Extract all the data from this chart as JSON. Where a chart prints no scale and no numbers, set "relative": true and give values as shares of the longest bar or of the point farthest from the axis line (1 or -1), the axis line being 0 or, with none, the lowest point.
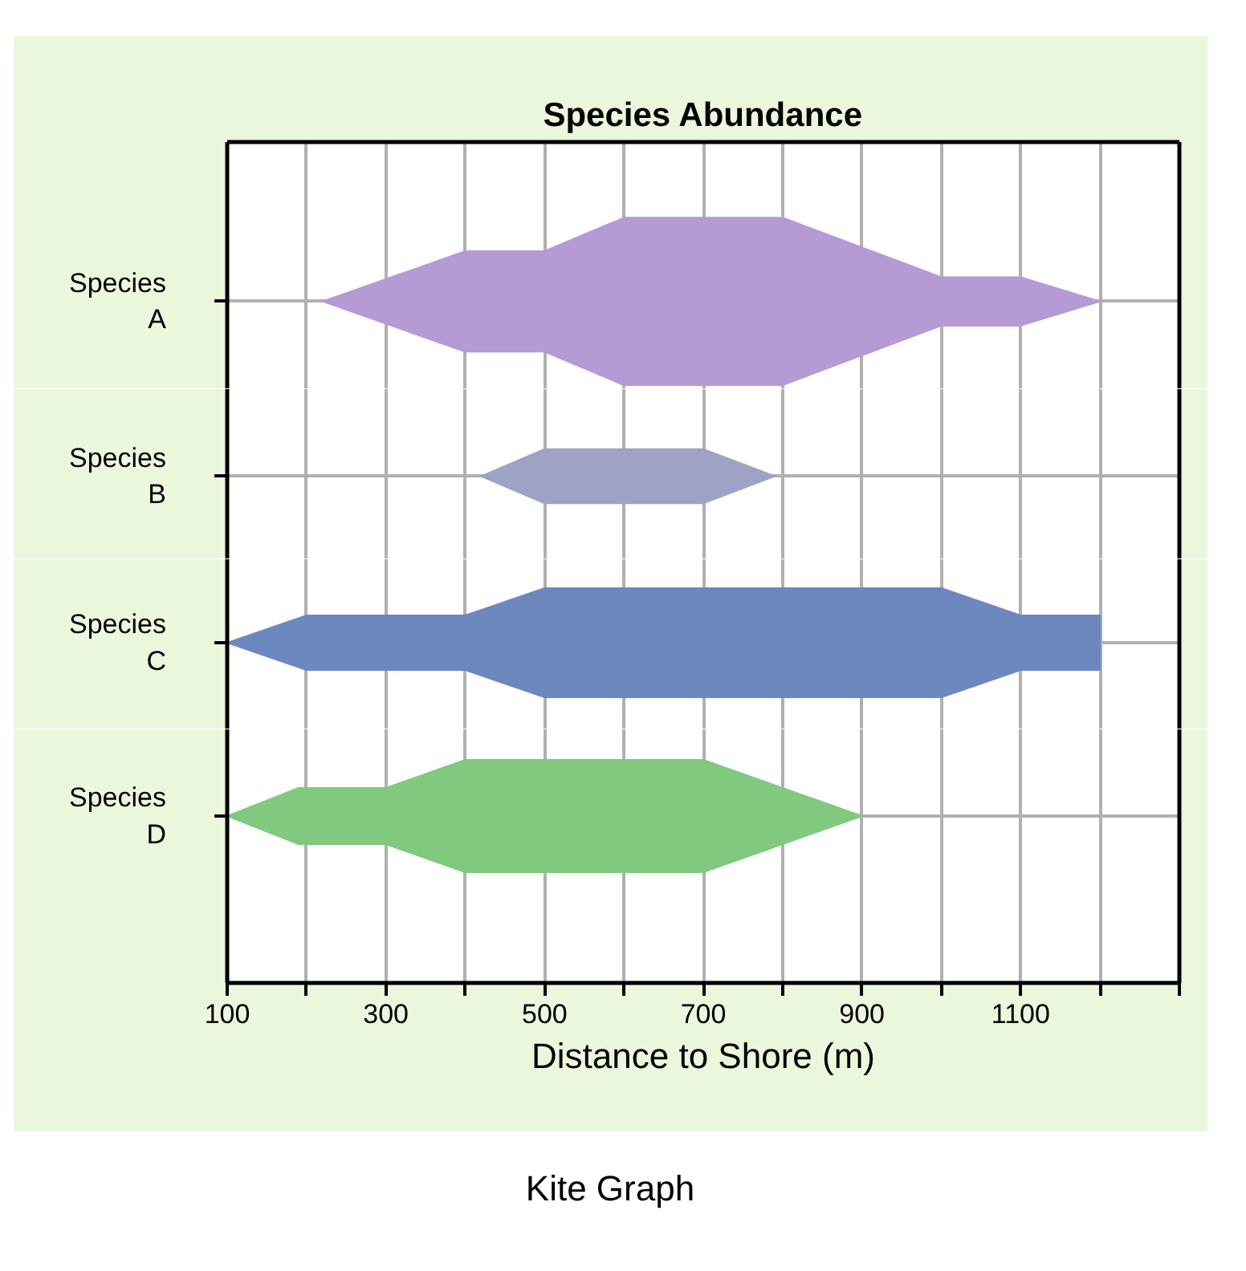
{
  "chart_data": [
    {
      "type": "area",
      "title": "Species Abundance",
      "ylabel": "Species A",
      "relative": true,
      "grid": true,
      "tick_labels": "y",
      "xlim": [
        100,
        1300
      ],
      "xticks": [
        100,
        {
          "value": 200,
          "label": null
        },
        300,
        {
          "value": 400,
          "label": null
        },
        500,
        {
          "value": 600,
          "label": null
        },
        700,
        {
          "value": 800,
          "label": null
        },
        900,
        {
          "value": 1000,
          "label": null
        },
        1100,
        {
          "value": 1200,
          "label": null
        },
        {
          "value": 1300,
          "label": null
        }
      ],
      "series": [
        {
          "color": "#b59ad4",
          "x": [
            220,
            400,
            500,
            600,
            800,
            1000,
            1100,
            1200
          ],
          "values": [
            0,
            0.6,
            0.6,
            1,
            1,
            0.29,
            0.29,
            0
          ]
        }
      ]
    },
    {
      "type": "area",
      "ylabel": "Species B",
      "relative": true,
      "grid": true,
      "tick_labels": "y",
      "xlim": [
        100,
        1300
      ],
      "xticks": [
        100,
        {
          "value": 200,
          "label": null
        },
        300,
        {
          "value": 400,
          "label": null
        },
        500,
        {
          "value": 600,
          "label": null
        },
        700,
        {
          "value": 800,
          "label": null
        },
        900,
        {
          "value": 1000,
          "label": null
        },
        1100,
        {
          "value": 1200,
          "label": null
        },
        {
          "value": 1300,
          "label": null
        }
      ],
      "series": [
        {
          "color": "#9ea3c6",
          "x": [
            420,
            500,
            700,
            790
          ],
          "values": [
            0,
            1,
            1,
            0
          ]
        }
      ]
    },
    {
      "type": "area",
      "ylabel": "Species C",
      "relative": true,
      "grid": true,
      "tick_labels": "y",
      "xlim": [
        100,
        1300
      ],
      "xticks": [
        100,
        {
          "value": 200,
          "label": null
        },
        300,
        {
          "value": 400,
          "label": null
        },
        500,
        {
          "value": 600,
          "label": null
        },
        700,
        {
          "value": 800,
          "label": null
        },
        900,
        {
          "value": 1000,
          "label": null
        },
        1100,
        {
          "value": 1200,
          "label": null
        },
        {
          "value": 1300,
          "label": null
        }
      ],
      "series": [
        {
          "color": "#6d88bf",
          "x": [
            100,
            200,
            400,
            500,
            1000,
            1100,
            1200
          ],
          "values": [
            0,
            0.5,
            0.5,
            1,
            1,
            0.5,
            0.5
          ]
        }
      ]
    },
    {
      "type": "area",
      "ylabel": "Species D",
      "xlabel": "Distance to Shore (m)",
      "relative": true,
      "grid": true,
      "xlim": [
        100,
        1300
      ],
      "xticks": [
        100,
        {
          "value": 200,
          "label": null
        },
        300,
        {
          "value": 400,
          "label": null
        },
        500,
        {
          "value": 600,
          "label": null
        },
        700,
        {
          "value": 800,
          "label": null
        },
        900,
        {
          "value": 1000,
          "label": null
        },
        1100,
        {
          "value": 1200,
          "label": null
        },
        {
          "value": 1300,
          "label": null
        }
      ],
      "series": [
        {
          "color": "#80c97f",
          "x": [
            100,
            190,
            300,
            400,
            700,
            900
          ],
          "values": [
            0,
            0.5,
            0.5,
            1,
            1,
            0
          ]
        }
      ],
      "annotations": [
        "Kite Graph"
      ]
    }
  ]
}
